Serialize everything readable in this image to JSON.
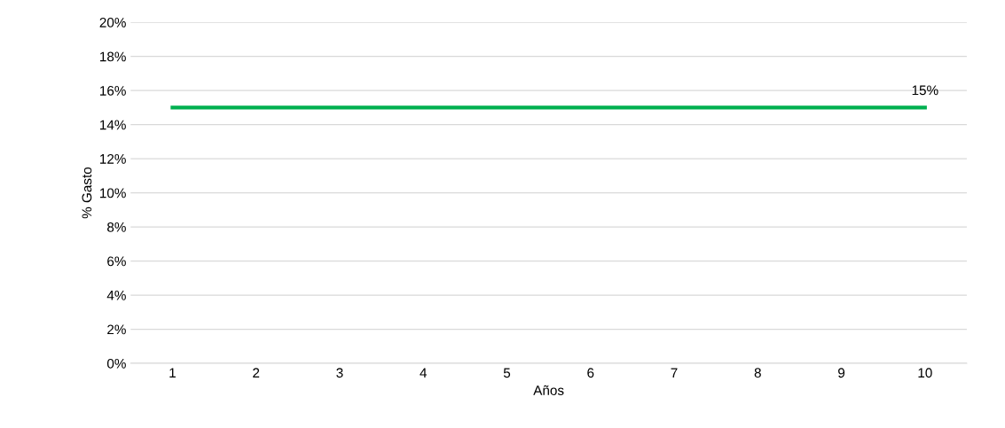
{
  "chart_data": {
    "type": "line",
    "xlabel": "Años",
    "ylabel": "% Gasto",
    "categories": [
      "1",
      "2",
      "3",
      "4",
      "5",
      "6",
      "7",
      "8",
      "9",
      "10"
    ],
    "series": [
      {
        "color": "#00b050",
        "values": [
          15,
          15,
          15,
          15,
          15,
          15,
          15,
          15,
          15,
          15
        ],
        "value_labels": [
          null,
          null,
          null,
          null,
          null,
          null,
          null,
          null,
          null,
          "15%"
        ]
      }
    ],
    "ylim": [
      0,
      20
    ],
    "yticks": [
      {
        "value": 0,
        "label": "0%"
      },
      {
        "value": 2,
        "label": "2%"
      },
      {
        "value": 4,
        "label": "4%"
      },
      {
        "value": 6,
        "label": "6%"
      },
      {
        "value": 8,
        "label": "8%"
      },
      {
        "value": 10,
        "label": "10%"
      },
      {
        "value": 12,
        "label": "12%"
      },
      {
        "value": 14,
        "label": "14%"
      },
      {
        "value": 16,
        "label": "16%"
      },
      {
        "value": 18,
        "label": "18%"
      },
      {
        "value": 20,
        "label": "20%"
      }
    ],
    "grid": "y",
    "marker": "none",
    "line_style": "solid"
  }
}
